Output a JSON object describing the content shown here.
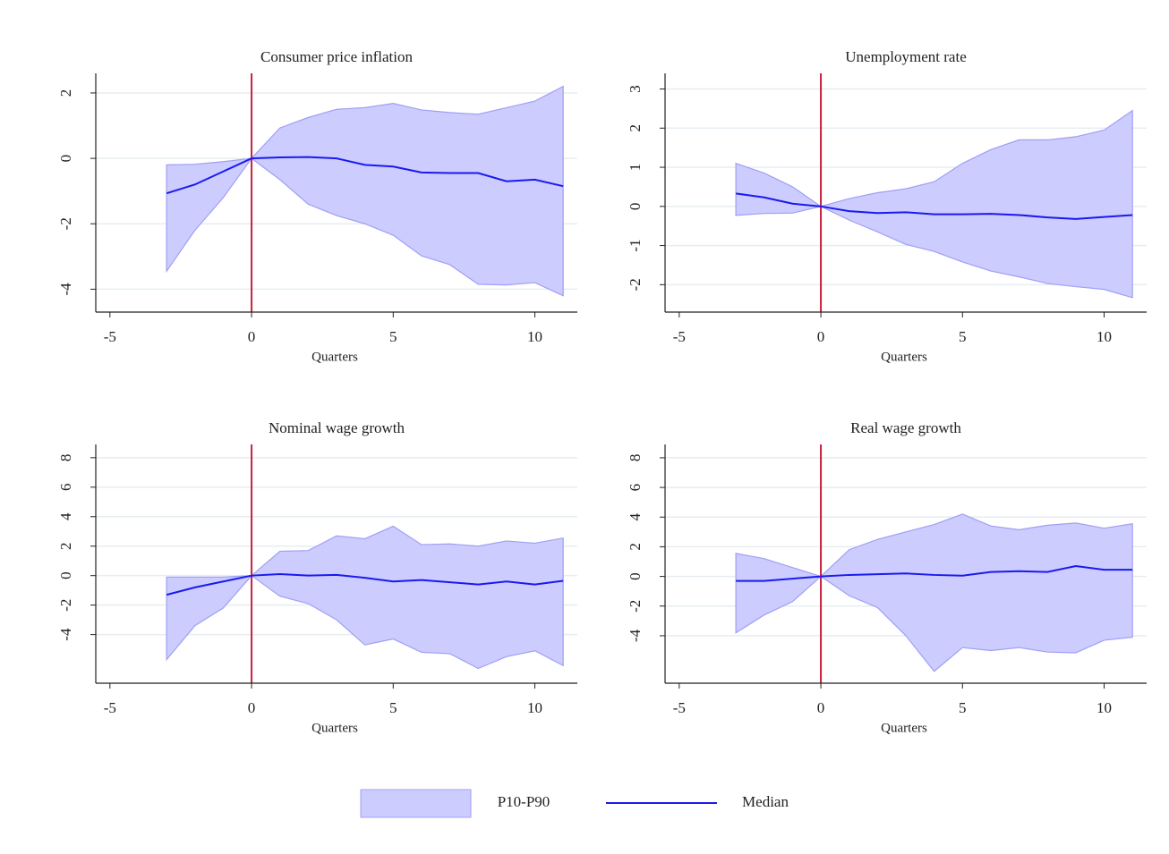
{
  "chart_data": [
    {
      "type": "line",
      "title": "Consumer price inflation",
      "xlabel": "Quarters",
      "x": [
        -3,
        -2,
        -1,
        0,
        1,
        2,
        3,
        4,
        5,
        6,
        7,
        8,
        9,
        10,
        11
      ],
      "series": [
        {
          "lower": [
            -3.45,
            -2.2,
            -1.2,
            0,
            -0.65,
            -1.4,
            -1.75,
            -2.0,
            -2.35,
            -2.98,
            -3.25,
            -3.85,
            -3.87,
            -3.8,
            -4.2
          ],
          "upper": [
            -0.2,
            -0.18,
            -0.1,
            0,
            0.93,
            1.25,
            1.5,
            1.55,
            1.68,
            1.48,
            1.4,
            1.35,
            1.55,
            1.75,
            2.2
          ]
        },
        {
          "values": [
            -1.07,
            -0.8,
            -0.4,
            0,
            0.03,
            0.04,
            0.0,
            -0.2,
            -0.25,
            -0.43,
            -0.45,
            -0.45,
            -0.7,
            -0.65,
            -0.85
          ]
        }
      ],
      "vline": 0,
      "xlim": [
        -5.5,
        11.5
      ],
      "xticks": [
        -5,
        0,
        5,
        10
      ],
      "ylim": [
        -4.7,
        2.6
      ],
      "yticks": [
        -4,
        -2,
        0,
        2
      ],
      "grid": true
    },
    {
      "type": "line",
      "title": "Unemployment rate",
      "xlabel": "Quarters",
      "x": [
        -3,
        -2,
        -1,
        0,
        1,
        2,
        3,
        4,
        5,
        6,
        7,
        8,
        9,
        10,
        11
      ],
      "series": [
        {
          "lower": [
            -0.23,
            -0.18,
            -0.17,
            0,
            -0.35,
            -0.65,
            -0.97,
            -1.15,
            -1.42,
            -1.65,
            -1.8,
            -1.97,
            -2.05,
            -2.12,
            -2.33
          ],
          "upper": [
            1.1,
            0.85,
            0.5,
            0,
            0.2,
            0.35,
            0.45,
            0.63,
            1.1,
            1.45,
            1.7,
            1.7,
            1.78,
            1.95,
            2.45
          ]
        },
        {
          "values": [
            0.33,
            0.23,
            0.07,
            0,
            -0.12,
            -0.17,
            -0.15,
            -0.2,
            -0.2,
            -0.19,
            -0.22,
            -0.28,
            -0.32,
            -0.27,
            -0.22
          ]
        }
      ],
      "vline": 0,
      "xlim": [
        -5.5,
        11.5
      ],
      "xticks": [
        -5,
        0,
        5,
        10
      ],
      "ylim": [
        -2.7,
        3.4
      ],
      "yticks": [
        -2,
        -1,
        0,
        1,
        2,
        3
      ],
      "grid": true
    },
    {
      "type": "line",
      "title": "Nominal wage growth",
      "xlabel": "Quarters",
      "x": [
        -3,
        -2,
        -1,
        0,
        1,
        2,
        3,
        4,
        5,
        6,
        7,
        8,
        9,
        10,
        11
      ],
      "series": [
        {
          "lower": [
            -5.7,
            -3.4,
            -2.2,
            0,
            -1.4,
            -1.9,
            -3.0,
            -4.7,
            -4.3,
            -5.2,
            -5.3,
            -6.3,
            -5.5,
            -5.1,
            -6.1
          ],
          "upper": [
            -0.1,
            -0.1,
            -0.1,
            0,
            1.65,
            1.7,
            2.7,
            2.5,
            3.35,
            2.1,
            2.15,
            2.0,
            2.35,
            2.2,
            2.55
          ]
        },
        {
          "values": [
            -1.3,
            -0.8,
            -0.4,
            0,
            0.1,
            0.0,
            0.05,
            -0.15,
            -0.4,
            -0.3,
            -0.45,
            -0.6,
            -0.4,
            -0.6,
            -0.35
          ]
        }
      ],
      "vline": 0,
      "xlim": [
        -5.5,
        11.5
      ],
      "xticks": [
        -5,
        0,
        5,
        10
      ],
      "ylim": [
        -7.3,
        8.9
      ],
      "yticks": [
        -4,
        -2,
        0,
        2,
        4,
        6,
        8
      ],
      "grid": true
    },
    {
      "type": "line",
      "title": "Real wage growth",
      "xlabel": "Quarters",
      "x": [
        -3,
        -2,
        -1,
        0,
        1,
        2,
        3,
        4,
        5,
        6,
        7,
        8,
        9,
        10,
        11
      ],
      "series": [
        {
          "lower": [
            -3.8,
            -2.6,
            -1.7,
            0,
            -1.3,
            -2.1,
            -4.0,
            -6.4,
            -4.8,
            -5.0,
            -4.8,
            -5.1,
            -5.15,
            -4.3,
            -4.1
          ],
          "upper": [
            1.55,
            1.2,
            0.6,
            0,
            1.8,
            2.5,
            3.0,
            3.5,
            4.2,
            3.4,
            3.15,
            3.45,
            3.6,
            3.25,
            3.55
          ]
        },
        {
          "values": [
            -0.3,
            -0.3,
            -0.15,
            0,
            0.1,
            0.15,
            0.2,
            0.1,
            0.05,
            0.3,
            0.35,
            0.3,
            0.7,
            0.45,
            0.45
          ]
        }
      ],
      "vline": 0,
      "xlim": [
        -5.5,
        11.5
      ],
      "xticks": [
        -5,
        0,
        5,
        10
      ],
      "ylim": [
        -7.2,
        8.9
      ],
      "yticks": [
        -4,
        -2,
        0,
        2,
        4,
        6,
        8
      ],
      "grid": true
    }
  ],
  "legend": [
    {
      "name": "P10-P90",
      "color": "#ccccff",
      "edge": "#9f9ff5"
    },
    {
      "name": "Median",
      "color": "#1a1aee"
    }
  ],
  "vline_color": "#c8203e"
}
